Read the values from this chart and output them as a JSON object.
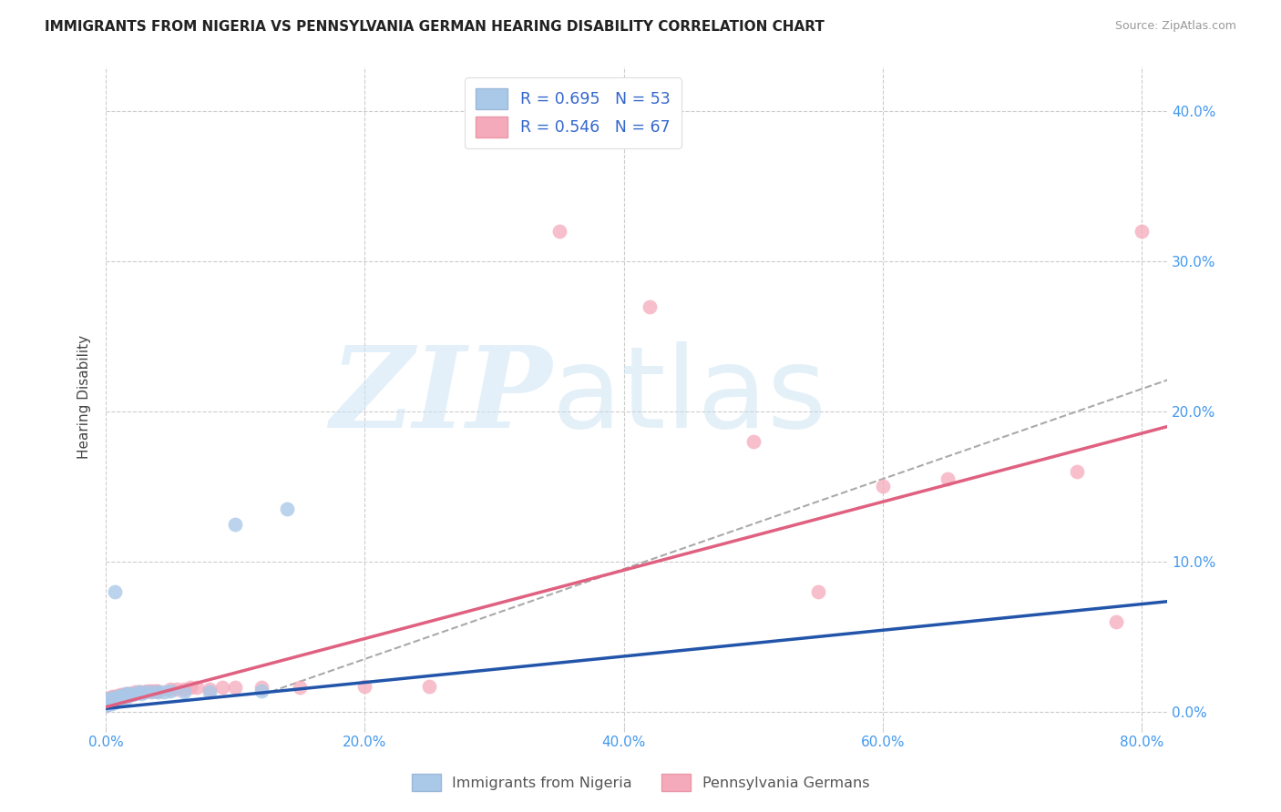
{
  "title": "IMMIGRANTS FROM NIGERIA VS PENNSYLVANIA GERMAN HEARING DISABILITY CORRELATION CHART",
  "source": "Source: ZipAtlas.com",
  "ylabel_label": "Hearing Disability",
  "series1_legend_label": "R = 0.695   N = 53",
  "series2_legend_label": "R = 0.546   N = 67",
  "series1_bottom_label": "Immigrants from Nigeria",
  "series2_bottom_label": "Pennsylvania Germans",
  "series1_color": "#aac8e8",
  "series2_color": "#f5aabb",
  "series1_line_color": "#2255aa",
  "series2_line_color": "#e06080",
  "dashed_line_color": "#aaaaaa",
  "background_color": "#ffffff",
  "grid_color": "#cccccc",
  "axis_label_color": "#4499ee",
  "xlim": [
    0.0,
    0.82
  ],
  "ylim": [
    -0.01,
    0.43
  ],
  "xtick_vals": [
    0.0,
    0.2,
    0.4,
    0.6,
    0.8
  ],
  "ytick_vals": [
    0.0,
    0.1,
    0.2,
    0.3,
    0.4
  ],
  "series1_x": [
    0.0,
    0.0,
    0.0,
    0.0,
    0.001,
    0.001,
    0.001,
    0.001,
    0.001,
    0.002,
    0.002,
    0.002,
    0.002,
    0.003,
    0.003,
    0.003,
    0.003,
    0.004,
    0.004,
    0.004,
    0.005,
    0.005,
    0.005,
    0.006,
    0.006,
    0.007,
    0.007,
    0.008,
    0.009,
    0.009,
    0.01,
    0.011,
    0.012,
    0.013,
    0.014,
    0.015,
    0.015,
    0.016,
    0.018,
    0.02,
    0.022,
    0.025,
    0.027,
    0.03,
    0.035,
    0.04,
    0.045,
    0.05,
    0.06,
    0.08,
    0.1,
    0.12,
    0.14
  ],
  "series1_y": [
    0.005,
    0.006,
    0.005,
    0.004,
    0.005,
    0.006,
    0.005,
    0.008,
    0.005,
    0.006,
    0.007,
    0.005,
    0.006,
    0.007,
    0.006,
    0.008,
    0.005,
    0.008,
    0.009,
    0.005,
    0.007,
    0.008,
    0.006,
    0.009,
    0.006,
    0.008,
    0.08,
    0.009,
    0.01,
    0.007,
    0.009,
    0.01,
    0.009,
    0.01,
    0.01,
    0.012,
    0.009,
    0.011,
    0.012,
    0.011,
    0.012,
    0.013,
    0.012,
    0.013,
    0.013,
    0.013,
    0.013,
    0.014,
    0.013,
    0.013,
    0.125,
    0.014,
    0.135
  ],
  "series2_x": [
    0.0,
    0.0,
    0.0,
    0.0,
    0.0,
    0.0,
    0.001,
    0.001,
    0.001,
    0.001,
    0.002,
    0.002,
    0.002,
    0.002,
    0.003,
    0.003,
    0.003,
    0.004,
    0.004,
    0.005,
    0.005,
    0.005,
    0.006,
    0.006,
    0.007,
    0.007,
    0.008,
    0.008,
    0.009,
    0.01,
    0.011,
    0.012,
    0.013,
    0.015,
    0.016,
    0.017,
    0.018,
    0.02,
    0.022,
    0.025,
    0.027,
    0.03,
    0.032,
    0.035,
    0.038,
    0.04,
    0.05,
    0.055,
    0.06,
    0.065,
    0.07,
    0.08,
    0.09,
    0.1,
    0.12,
    0.15,
    0.2,
    0.25,
    0.35,
    0.42,
    0.5,
    0.55,
    0.6,
    0.65,
    0.75,
    0.78,
    0.8
  ],
  "series2_y": [
    0.004,
    0.005,
    0.005,
    0.006,
    0.007,
    0.008,
    0.005,
    0.006,
    0.007,
    0.008,
    0.006,
    0.007,
    0.008,
    0.009,
    0.007,
    0.008,
    0.009,
    0.008,
    0.009,
    0.008,
    0.009,
    0.01,
    0.008,
    0.009,
    0.009,
    0.01,
    0.009,
    0.01,
    0.01,
    0.01,
    0.011,
    0.01,
    0.011,
    0.011,
    0.012,
    0.012,
    0.012,
    0.012,
    0.013,
    0.013,
    0.013,
    0.013,
    0.014,
    0.014,
    0.014,
    0.014,
    0.015,
    0.015,
    0.015,
    0.016,
    0.016,
    0.015,
    0.016,
    0.016,
    0.016,
    0.016,
    0.017,
    0.017,
    0.32,
    0.27,
    0.18,
    0.08,
    0.15,
    0.155,
    0.16,
    0.06,
    0.32
  ]
}
